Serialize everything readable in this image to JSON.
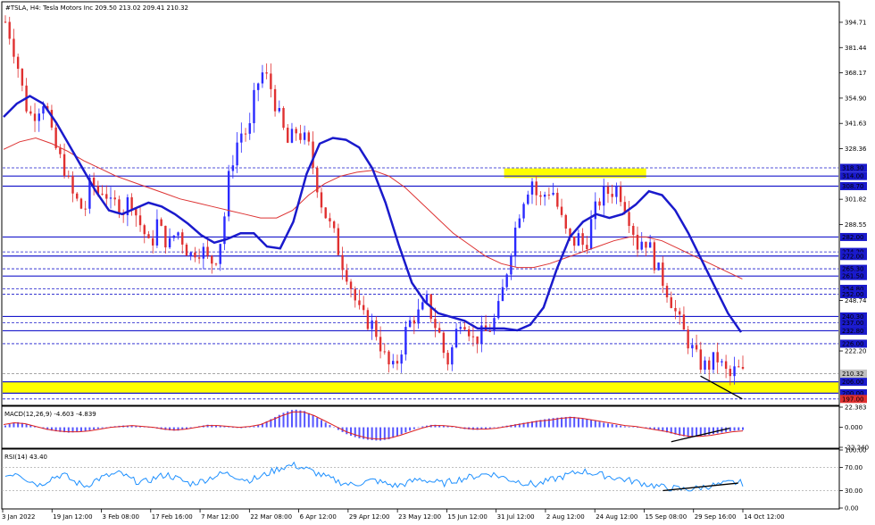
{
  "header": {
    "symbol_line": "#TSLA, H4:  Tesla Motors Inc  209.50 213.02 209.41 210.32"
  },
  "colors": {
    "bull": "#2a2aff",
    "bear": "#e03030",
    "ma_blue": "#1a1acc",
    "ma_red": "#dd3333",
    "hline": "#1a1acc",
    "zone": "#ffff00",
    "macd_hist": "#5555ff",
    "macd_signal": "#dd2222",
    "rsi": "#1e90ff",
    "trend": "#000000"
  },
  "chart_data": [
    {
      "type": "candlestick",
      "title": "#TSLA, H4:  Tesla Motors Inc  209.50 213.02 209.41 210.32",
      "ylim": [
        194.1,
        405
      ],
      "y_ticks": [
        "394.71",
        "381.44",
        "368.17",
        "354.90",
        "341.63",
        "328.36",
        "301.82",
        "288.55",
        "248.74",
        "222.20"
      ],
      "x_ticks": [
        "3 Jan 2022",
        "19 Jan 12:00",
        "3 Feb 08:00",
        "17 Feb 16:00",
        "7 Mar 12:00",
        "22 Mar 08:00",
        "6 Apr 12:00",
        "29 Apr 12:00",
        "23 May 12:00",
        "15 Jun 12:00",
        "31 Jul 12:00",
        "2 Aug 12:00",
        "24 Aug 12:00",
        "15 Sep 08:00",
        "29 Sep 16:00",
        "14 Oct 12:00"
      ],
      "close_path": [
        395,
        385,
        370,
        352,
        345,
        350,
        355,
        335,
        325,
        318,
        305,
        300,
        295,
        312,
        305,
        308,
        298,
        300,
        296,
        304,
        292,
        285,
        275,
        290,
        282,
        278,
        286,
        280,
        272,
        276,
        275,
        268,
        272,
        285,
        315,
        330,
        338,
        336,
        360,
        368,
        364,
        352,
        340,
        330,
        338,
        335,
        330,
        315,
        300,
        290,
        282,
        270,
        262,
        250,
        240,
        238,
        235,
        225,
        215,
        212,
        222,
        235,
        240,
        242,
        248,
        238,
        230,
        215,
        225,
        240,
        238,
        228,
        230,
        232,
        236,
        245,
        262,
        280,
        295,
        306,
        312,
        300,
        305,
        308,
        296,
        285,
        278,
        282,
        276,
        290,
        300,
        305,
        306,
        308,
        300,
        290,
        278,
        282,
        275,
        265,
        258,
        250,
        240,
        232,
        225,
        218,
        214,
        215,
        219,
        213,
        208,
        213,
        210
      ],
      "hlines": [
        {
          "label": "318.30",
          "value": 318.3,
          "style": "dash",
          "boxed": true
        },
        {
          "label": "314.00",
          "value": 314.0,
          "style": "solid",
          "boxed": true
        },
        {
          "label": "308.70",
          "value": 308.7,
          "style": "solid",
          "boxed": true
        },
        {
          "label": "282.00",
          "value": 282.0,
          "style": "solid",
          "boxed": true
        },
        {
          "label": "274.20",
          "value": 274.2,
          "style": "dash",
          "boxed": true
        },
        {
          "label": "272.00",
          "value": 272.0,
          "style": "solid",
          "boxed": true
        },
        {
          "label": "265.30",
          "value": 265.3,
          "style": "dash",
          "boxed": true
        },
        {
          "label": "261.50",
          "value": 261.5,
          "style": "solid",
          "boxed": true
        },
        {
          "label": "254.80",
          "value": 254.8,
          "style": "dash",
          "boxed": true
        },
        {
          "label": "252.00",
          "value": 252.0,
          "style": "dash",
          "boxed": true
        },
        {
          "label": "240.30",
          "value": 240.3,
          "style": "solid",
          "boxed": true
        },
        {
          "label": "237.00",
          "value": 237.0,
          "style": "dash",
          "boxed": true
        },
        {
          "label": "232.80",
          "value": 232.8,
          "style": "solid",
          "boxed": true
        },
        {
          "label": "226.00",
          "value": 226.0,
          "style": "dash",
          "boxed": true
        },
        {
          "label": "210.32",
          "value": 210.32,
          "style": "dash",
          "boxed": true,
          "current": true
        },
        {
          "label": "206.00",
          "value": 206.0,
          "style": "solid",
          "boxed": true
        },
        {
          "label": "200.00",
          "value": 200.0,
          "style": "solid",
          "boxed": true
        },
        {
          "label": "197.00",
          "value": 197.0,
          "style": "dash",
          "boxed": true
        }
      ],
      "zones": [
        {
          "from": 200.0,
          "to": 206.0,
          "x_from_frac": 0.0,
          "x_to_frac": 1.0
        },
        {
          "from": 313.0,
          "to": 318.0,
          "x_from_frac": 0.6,
          "x_to_frac": 0.77
        }
      ],
      "trendline": {
        "x": [
          0.835,
          0.885
        ],
        "y": [
          209,
          197
        ]
      },
      "ma_fast_path": [
        345,
        352,
        356,
        352,
        342,
        330,
        318,
        306,
        296,
        294,
        297,
        300,
        298,
        294,
        289,
        283,
        279,
        281,
        284,
        284,
        277,
        276,
        290,
        315,
        331,
        334,
        333,
        329,
        318,
        300,
        278,
        258,
        248,
        242,
        240,
        238,
        234,
        234,
        234,
        233,
        236,
        245,
        265,
        282,
        290,
        294,
        292,
        294,
        299,
        306,
        304,
        296,
        284,
        270,
        256,
        242,
        232
      ],
      "ma_slow_path": [
        328,
        332,
        334,
        331,
        327,
        322,
        318,
        314,
        311,
        308,
        305,
        302,
        300,
        298,
        296,
        294,
        292,
        292,
        296,
        304,
        310,
        314,
        316,
        317,
        314,
        308,
        300,
        292,
        284,
        278,
        272,
        268,
        266,
        266,
        268,
        271,
        274,
        277,
        280,
        282,
        282,
        280,
        276,
        272,
        268,
        264,
        260
      ],
      "ma_slow_x_end_frac": 0.885
    },
    {
      "type": "bar",
      "name": "MACD(12,26,9) -4.603 -4.839",
      "label": "MACD(12,26,9) -4.603 -4.839",
      "ylim": [
        -22.24,
        22.383
      ],
      "y_ticks": [
        "22.383",
        "0.000",
        "-22.240"
      ],
      "hist_path": [
        2,
        6,
        4,
        0,
        -3,
        -5,
        -6,
        -5,
        -3,
        -1,
        1,
        2,
        2,
        1,
        -1,
        -3,
        -4,
        -2,
        1,
        3,
        2,
        0,
        -1,
        0,
        4,
        10,
        16,
        20,
        18,
        12,
        5,
        -2,
        -8,
        -12,
        -14,
        -15,
        -13,
        -8,
        -3,
        1,
        3,
        2,
        0,
        -2,
        -3,
        -2,
        0,
        2,
        4,
        6,
        8,
        10,
        11,
        12,
        10,
        8,
        5,
        3,
        1,
        0,
        -1,
        -3,
        -6,
        -9,
        -11,
        -10,
        -8,
        -6,
        -4,
        -3
      ],
      "signal_path": [
        3,
        5,
        4,
        1,
        -2,
        -4,
        -5,
        -5,
        -4,
        -2,
        0,
        1,
        2,
        1,
        0,
        -2,
        -3,
        -2,
        0,
        2,
        2,
        1,
        0,
        1,
        3,
        8,
        13,
        17,
        17,
        13,
        7,
        1,
        -5,
        -9,
        -12,
        -13,
        -12,
        -9,
        -5,
        -1,
        2,
        2,
        1,
        -1,
        -2,
        -2,
        -1,
        1,
        3,
        5,
        7,
        8,
        10,
        11,
        10,
        8,
        6,
        4,
        2,
        1,
        -1,
        -3,
        -5,
        -8,
        -10,
        -10,
        -9,
        -7,
        -5,
        -4
      ],
      "trendline": {
        "x": [
          0.8,
          0.87
        ],
        "y": [
          -16,
          -1
        ]
      }
    },
    {
      "type": "line",
      "name": "RSI(14) 43.40",
      "label": "RSI(14) 43.40",
      "ylim": [
        0,
        100
      ],
      "y_ticks": [
        "100.00",
        "70.00",
        "30.00",
        "0.00"
      ],
      "levels": [
        70,
        30
      ],
      "values": [
        55,
        62,
        48,
        40,
        52,
        58,
        45,
        38,
        50,
        56,
        60,
        48,
        44,
        52,
        58,
        50,
        42,
        46,
        54,
        60,
        55,
        48,
        52,
        62,
        70,
        74,
        68,
        60,
        52,
        45,
        40,
        44,
        48,
        42,
        38,
        44,
        50,
        46,
        42,
        48,
        52,
        56,
        60,
        54,
        48,
        44,
        40,
        46,
        52,
        58,
        64,
        60,
        56,
        52,
        48,
        44,
        40,
        36,
        34,
        32,
        34,
        38,
        40,
        44,
        43
      ],
      "trendline": {
        "x": [
          0.79,
          0.88
        ],
        "y": [
          30,
          43
        ]
      }
    }
  ]
}
